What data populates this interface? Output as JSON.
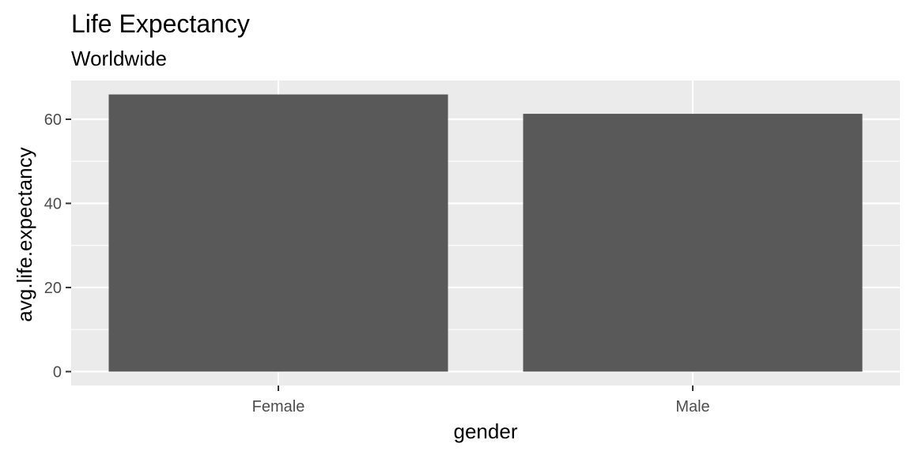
{
  "chart_data": {
    "type": "bar",
    "title": "Life Expectancy",
    "subtitle": "Worldwide",
    "xlabel": "gender",
    "ylabel": "avg.life.expectancy",
    "categories": [
      "Female",
      "Male"
    ],
    "values": [
      65.9,
      61.3
    ],
    "ylim": [
      -3.3,
      69.2
    ],
    "yticks": [
      0,
      20,
      40,
      60
    ],
    "grid": true,
    "legend": "none",
    "colors": {
      "panel_background": "#ebebeb",
      "gridline": "#ffffff",
      "bar_fill": "#595959",
      "tick_text": "#4d4d4d",
      "tick_mark": "#333333"
    }
  }
}
